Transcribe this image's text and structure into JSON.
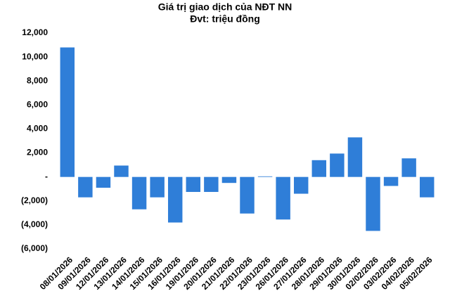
{
  "chart_data": {
    "type": "bar",
    "title": "Giá trị giao dịch của NĐT NN",
    "subtitle": "Đvt: triệu đồng",
    "categories": [
      "08/01/2026",
      "09/01/2026",
      "12/01/2026",
      "13/01/2026",
      "14/01/2026",
      "15/01/2026",
      "16/01/2026",
      "19/01/2026",
      "20/01/2026",
      "21/01/2026",
      "22/01/2026",
      "23/01/2026",
      "26/01/2026",
      "27/01/2026",
      "28/01/2026",
      "29/01/2026",
      "30/01/2026",
      "02/02/2026",
      "03/02/2026",
      "04/02/2026",
      "05/02/2026"
    ],
    "values": [
      10800,
      -1700,
      -900,
      950,
      -2700,
      -1700,
      -3800,
      -1250,
      -1250,
      -500,
      -3050,
      50,
      -3550,
      -1400,
      1400,
      1950,
      3300,
      -4500,
      -750,
      1550,
      -1700
    ],
    "color": "#2f7ed8",
    "ylim": [
      -6000,
      12000
    ],
    "yticks": [
      {
        "value": -6000,
        "label": "(6,000)"
      },
      {
        "value": -4000,
        "label": "(4,000)"
      },
      {
        "value": -2000,
        "label": "(2,000)"
      },
      {
        "value": 0,
        "label": "-"
      },
      {
        "value": 2000,
        "label": "2,000"
      },
      {
        "value": 4000,
        "label": "4,000"
      },
      {
        "value": 6000,
        "label": "6,000"
      },
      {
        "value": 8000,
        "label": "8,000"
      },
      {
        "value": 10000,
        "label": "10,000"
      },
      {
        "value": 12000,
        "label": "12,000"
      }
    ],
    "grid": false
  }
}
